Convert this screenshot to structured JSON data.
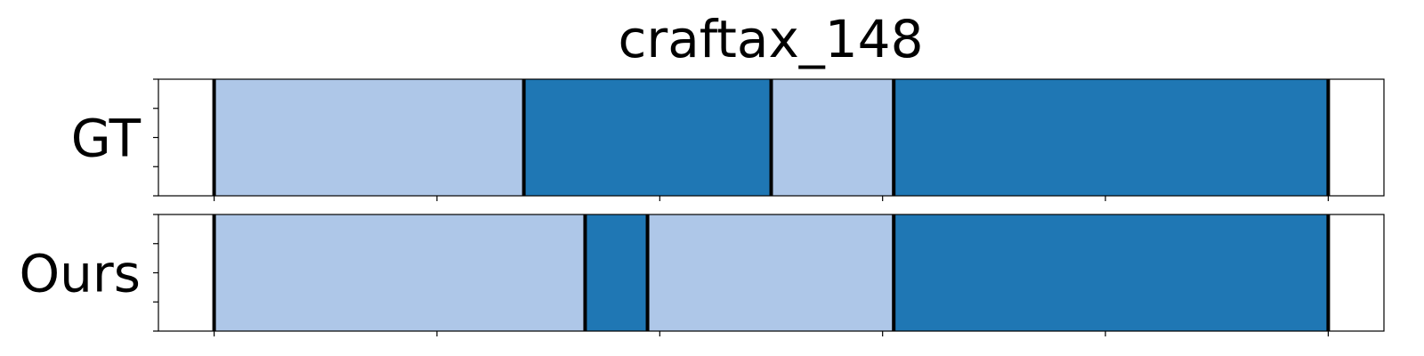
{
  "chart_data": {
    "type": "segmentation_timeline",
    "title": "craftax_148",
    "x_range": [
      -0.5,
      10.5
    ],
    "colors": {
      "light": "#aec7e8",
      "dark": "#1f77b4",
      "boundary": "#000000",
      "frame": "#000000"
    },
    "rows": [
      {
        "label": "GT",
        "segments": [
          {
            "start": 0.0,
            "end": 2.78,
            "shade": "light"
          },
          {
            "start": 2.78,
            "end": 5.0,
            "shade": "dark"
          },
          {
            "start": 5.0,
            "end": 6.1,
            "shade": "light"
          },
          {
            "start": 6.1,
            "end": 10.0,
            "shade": "dark"
          }
        ]
      },
      {
        "label": "Ours",
        "segments": [
          {
            "start": 0.0,
            "end": 3.33,
            "shade": "light"
          },
          {
            "start": 3.33,
            "end": 3.89,
            "shade": "dark"
          },
          {
            "start": 3.89,
            "end": 6.1,
            "shade": "light"
          },
          {
            "start": 6.1,
            "end": 10.0,
            "shade": "dark"
          }
        ]
      }
    ],
    "x_ticks": [
      0,
      2,
      4,
      6,
      8,
      10
    ],
    "show_tick_labels": false,
    "grid": false
  }
}
